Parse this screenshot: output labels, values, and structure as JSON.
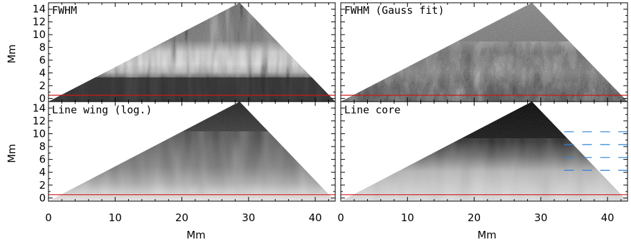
{
  "figure": {
    "panels": [
      {
        "title": "FWHM"
      },
      {
        "title": "FWHM (Gauss fit)"
      },
      {
        "title": "Line wing (log.)"
      },
      {
        "title": "Line core"
      }
    ],
    "x_axis": {
      "label": "Mm",
      "ticks": [
        "0",
        "10",
        "20",
        "30",
        "40"
      ]
    },
    "y_axis": {
      "label": "Mm",
      "ticks": [
        "0",
        "2",
        "4",
        "6",
        "8",
        "10",
        "12",
        "14"
      ]
    }
  },
  "chart_data": {
    "type": "heatmap",
    "xlabel": "Mm",
    "ylabel": "Mm",
    "xlim": [
      0,
      43
    ],
    "ylim": [
      -0.5,
      15
    ],
    "x_ticks": [
      0,
      10,
      20,
      30,
      40
    ],
    "y_ticks": [
      0,
      2,
      4,
      6,
      8,
      10,
      12,
      14
    ],
    "grid": false,
    "reference_line": {
      "y": 0.5,
      "color": "#d01818"
    },
    "core_markers": {
      "color": "#2a84d8",
      "y": [
        4.3,
        6.3,
        8.3,
        10.3
      ]
    },
    "colors": {
      "axis": "#000000",
      "reference_line": "#d01818",
      "markers": "#2a84d8"
    }
  }
}
